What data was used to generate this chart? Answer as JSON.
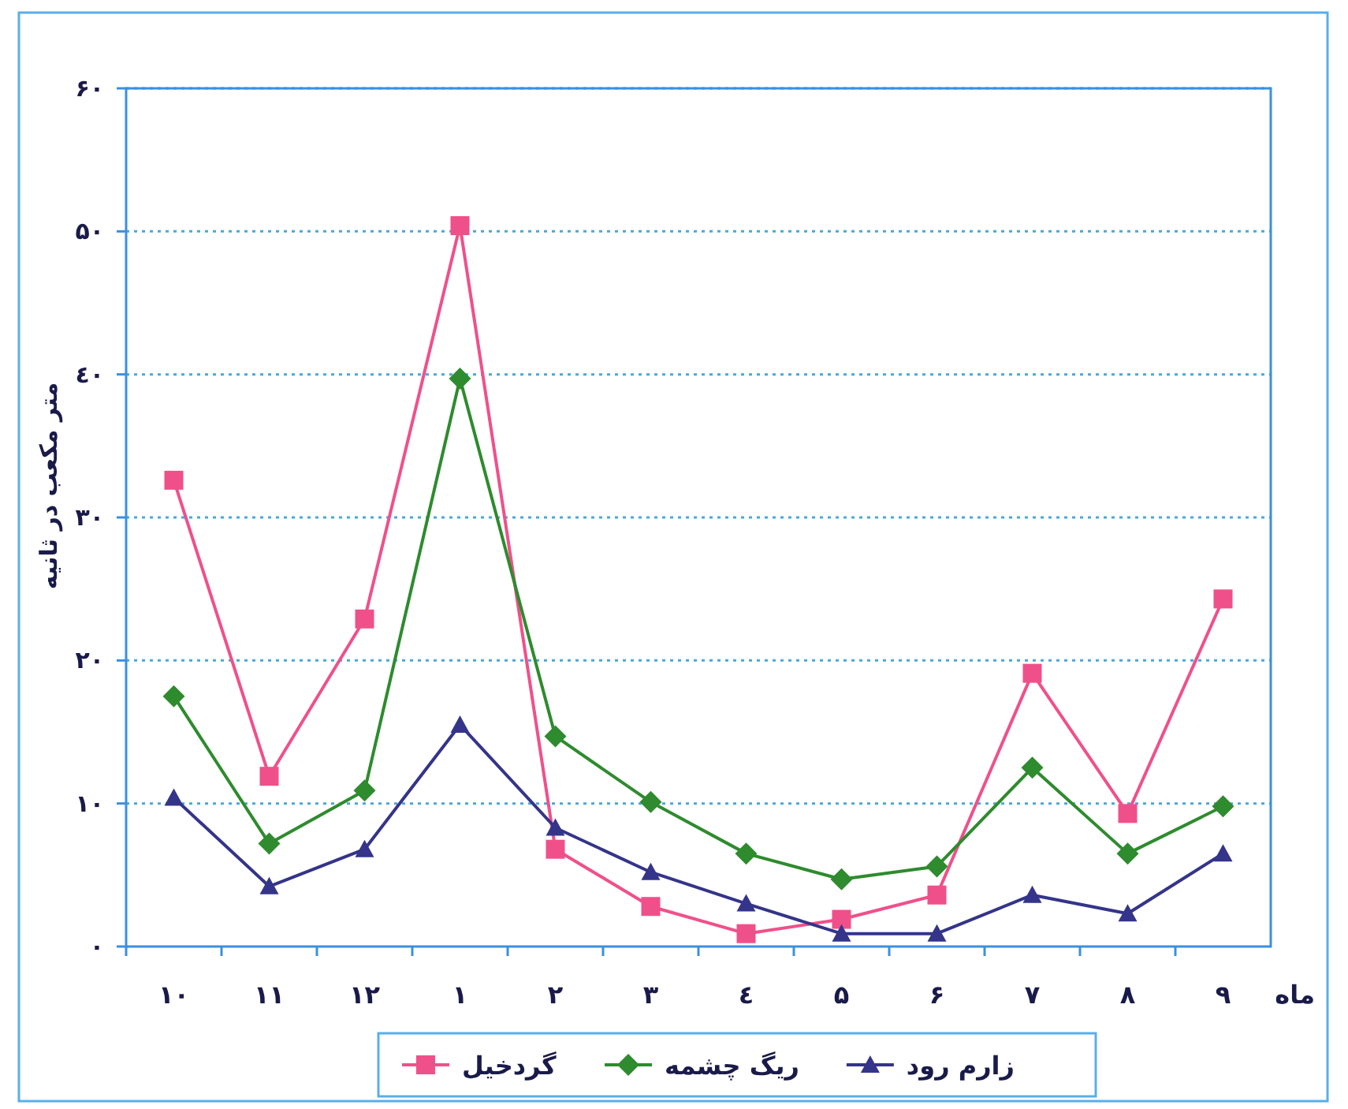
{
  "chart_data": {
    "type": "line",
    "ylabel": "متر مکعب در ثانیه",
    "xlabel": "ماه",
    "categories": [
      "۱۰",
      "۱۱",
      "۱۲",
      "۱",
      "۲",
      "۳",
      "٤",
      "۵",
      "۶",
      "۷",
      "۸",
      "۹"
    ],
    "series": [
      {
        "name": "گردخیل",
        "color": "#f0508a",
        "marker": "square",
        "values": [
          32.6,
          11.9,
          22.9,
          50.4,
          6.8,
          2.8,
          0.9,
          1.9,
          3.6,
          19.1,
          9.3,
          24.3
        ]
      },
      {
        "name": "ریگ چشمه",
        "color": "#2e8b2e",
        "marker": "diamond",
        "values": [
          17.5,
          7.2,
          10.9,
          39.7,
          14.7,
          10.1,
          6.5,
          4.7,
          5.6,
          12.5,
          6.5,
          9.8
        ]
      },
      {
        "name": "زارم رود",
        "color": "#34348a",
        "marker": "triangle",
        "values": [
          10.4,
          4.2,
          6.8,
          15.5,
          8.3,
          5.2,
          3.0,
          0.9,
          0.9,
          3.6,
          2.3,
          6.5
        ]
      }
    ],
    "ylim": [
      0,
      60
    ],
    "yticks": [
      {
        "value": 0,
        "label": "۰"
      },
      {
        "value": 10,
        "label": "۱۰"
      },
      {
        "value": 20,
        "label": "۲۰"
      },
      {
        "value": 30,
        "label": "۳۰"
      },
      {
        "value": 40,
        "label": "٤۰"
      },
      {
        "value": 50,
        "label": "۵۰"
      },
      {
        "value": 60,
        "label": "۶۰"
      }
    ],
    "grid": "y",
    "legend": "bottom"
  }
}
